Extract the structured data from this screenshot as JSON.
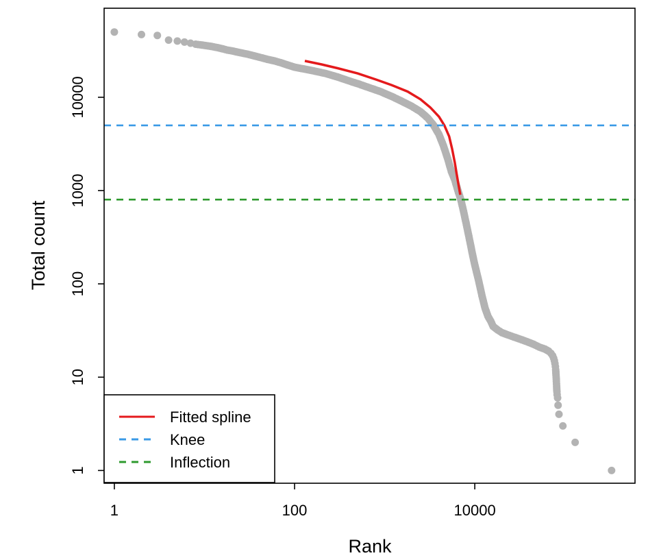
{
  "chart_data": {
    "type": "scatter",
    "title": "",
    "xlabel": "Rank",
    "ylabel": "Total count",
    "x_scale": "log",
    "y_scale": "log",
    "xlim": [
      0.77,
      600000
    ],
    "ylim": [
      0.73,
      90000
    ],
    "x_ticks": [
      {
        "value": 1,
        "label": "1"
      },
      {
        "value": 100,
        "label": "100"
      },
      {
        "value": 10000,
        "label": "10000"
      }
    ],
    "y_ticks": [
      {
        "value": 1,
        "label": "1"
      },
      {
        "value": 10,
        "label": "10"
      },
      {
        "value": 100,
        "label": "100"
      },
      {
        "value": 1000,
        "label": "1000"
      },
      {
        "value": 10000,
        "label": "10000"
      }
    ],
    "grid": false,
    "legend_position": "bottom-left",
    "colors": {
      "points": "#b3b3b3",
      "spline": "#e41a1c",
      "knee": "#3a9ae6",
      "inflection": "#2e9a2e"
    },
    "series": [
      {
        "name": "",
        "kind": "points",
        "points": [
          [
            1,
            50000
          ],
          [
            2,
            47000
          ],
          [
            3,
            46000
          ],
          [
            4,
            41000
          ],
          [
            5,
            40000
          ],
          [
            6,
            39000
          ],
          [
            7,
            38000
          ],
          [
            8,
            37000
          ],
          [
            9,
            36500
          ],
          [
            10,
            36000
          ],
          [
            12,
            35000
          ],
          [
            14,
            34000
          ],
          [
            16,
            33000
          ],
          [
            18,
            32000
          ],
          [
            20,
            31500
          ],
          [
            25,
            30000
          ],
          [
            30,
            29000
          ],
          [
            40,
            27000
          ],
          [
            50,
            25500
          ],
          [
            60,
            24500
          ],
          [
            70,
            23500
          ],
          [
            80,
            22500
          ],
          [
            100,
            21000
          ],
          [
            130,
            20000
          ],
          [
            170,
            19000
          ],
          [
            220,
            18000
          ],
          [
            300,
            16500
          ],
          [
            400,
            15000
          ],
          [
            500,
            14000
          ],
          [
            700,
            12500
          ],
          [
            900,
            11500
          ],
          [
            1200,
            10200
          ],
          [
            1500,
            9200
          ],
          [
            2000,
            8000
          ],
          [
            2500,
            7000
          ],
          [
            3000,
            6000
          ],
          [
            3500,
            5000
          ],
          [
            4000,
            4000
          ],
          [
            4500,
            3000
          ],
          [
            5000,
            2200
          ],
          [
            5500,
            1600
          ],
          [
            6000,
            1300
          ],
          [
            6500,
            1000
          ],
          [
            7000,
            800
          ],
          [
            7500,
            600
          ],
          [
            8000,
            450
          ],
          [
            8500,
            340
          ],
          [
            9000,
            260
          ],
          [
            9500,
            200
          ],
          [
            10000,
            160
          ],
          [
            11000,
            110
          ],
          [
            12000,
            75
          ],
          [
            13000,
            55
          ],
          [
            14000,
            45
          ],
          [
            15000,
            40
          ],
          [
            16000,
            35
          ],
          [
            18000,
            32
          ],
          [
            20000,
            30
          ],
          [
            23000,
            28.5
          ],
          [
            27000,
            27
          ],
          [
            32000,
            25.5
          ],
          [
            38000,
            24
          ],
          [
            45000,
            22.5
          ],
          [
            52000,
            21
          ],
          [
            60000,
            20
          ],
          [
            66000,
            19
          ],
          [
            70000,
            18
          ],
          [
            73000,
            17
          ],
          [
            75000,
            16
          ],
          [
            76500,
            15
          ],
          [
            77500,
            14
          ],
          [
            78500,
            13
          ],
          [
            79000,
            12
          ],
          [
            79500,
            11
          ],
          [
            80000,
            10
          ],
          [
            80500,
            9
          ],
          [
            81000,
            8
          ],
          [
            81500,
            7
          ],
          [
            82000,
            6.5
          ],
          [
            83000,
            6
          ],
          [
            84000,
            5
          ],
          [
            86000,
            4
          ],
          [
            95000,
            3
          ],
          [
            130000,
            2
          ],
          [
            330000,
            1
          ]
        ]
      },
      {
        "name": "Fitted spline",
        "kind": "line",
        "points": [
          [
            130,
            24500
          ],
          [
            200,
            22500
          ],
          [
            300,
            20500
          ],
          [
            500,
            18000
          ],
          [
            800,
            15500
          ],
          [
            1200,
            13500
          ],
          [
            1800,
            11500
          ],
          [
            2500,
            9500
          ],
          [
            3200,
            7800
          ],
          [
            4000,
            6200
          ],
          [
            4600,
            5000
          ],
          [
            5200,
            3800
          ],
          [
            5600,
            2800
          ],
          [
            6000,
            2000
          ],
          [
            6300,
            1500
          ],
          [
            6600,
            1150
          ],
          [
            6900,
            900
          ]
        ]
      },
      {
        "name": "Knee",
        "kind": "hline",
        "y": 5000
      },
      {
        "name": "Inflection",
        "kind": "hline",
        "y": 800
      }
    ]
  },
  "legend": {
    "items": [
      {
        "label": "Fitted spline"
      },
      {
        "label": "Knee"
      },
      {
        "label": "Inflection"
      }
    ]
  }
}
